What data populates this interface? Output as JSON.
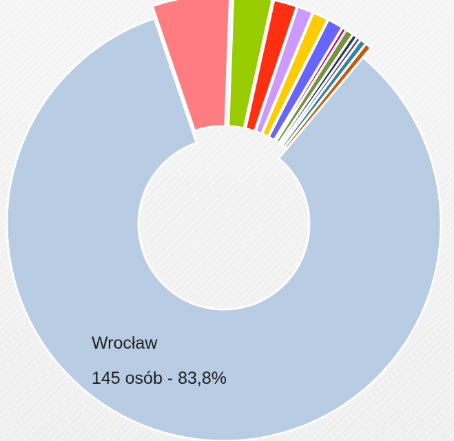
{
  "chart_data": {
    "type": "pie",
    "variant": "donut",
    "slices": [
      {
        "label": "Wrocław",
        "count": 145,
        "percent": 83.8,
        "color": "#b8cce4",
        "exploded": false,
        "value_label": "145 osób - 83,8%"
      },
      {
        "label": "",
        "value": 10,
        "color": "#ff7c80",
        "exploded": true
      },
      {
        "label": "",
        "value": 5,
        "color": "#99cc00",
        "exploded": true
      },
      {
        "label": "",
        "value": 3,
        "color": "#ff2f12",
        "exploded": true
      },
      {
        "label": "",
        "value": 2,
        "color": "#cc99ff",
        "exploded": true
      },
      {
        "label": "",
        "value": 2,
        "color": "#ffcc00",
        "exploded": true
      },
      {
        "label": "",
        "value": 2,
        "color": "#6666ff",
        "exploded": true
      },
      {
        "label": "",
        "value": 0.5,
        "color": "#cc0066",
        "exploded": true
      },
      {
        "label": "",
        "value": 1,
        "color": "#76923c",
        "exploded": true
      },
      {
        "label": "",
        "value": 0.6,
        "color": "#1f3864",
        "exploded": true
      },
      {
        "label": "",
        "value": 0.5,
        "color": "#5f497a",
        "exploded": true
      },
      {
        "label": "",
        "value": 0.8,
        "color": "#31859b",
        "exploded": true
      },
      {
        "label": "",
        "value": 0.8,
        "color": "#c55a11",
        "exploded": true
      }
    ],
    "legend": "none"
  }
}
